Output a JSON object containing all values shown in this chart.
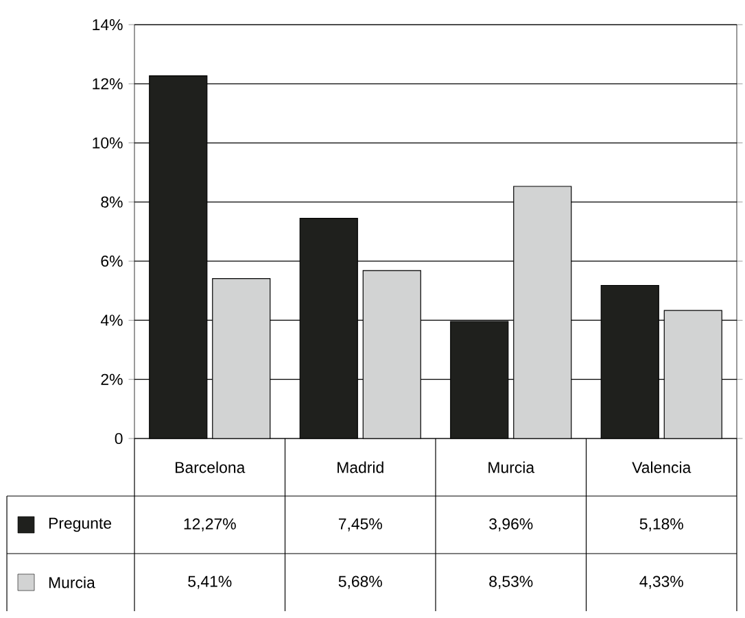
{
  "chart_data": {
    "type": "bar",
    "categories": [
      "Barcelona",
      "Madrid",
      "Murcia",
      "Valencia"
    ],
    "series": [
      {
        "name": "Pregunte",
        "color": "#1f201d",
        "values": [
          12.27,
          7.45,
          3.96,
          5.18
        ],
        "value_labels": [
          "12,27%",
          "7,45%",
          "3,96%",
          "5,18%"
        ]
      },
      {
        "name": "Murcia",
        "color": "#d2d3d3",
        "values": [
          5.41,
          5.68,
          8.53,
          4.33
        ],
        "value_labels": [
          "5,41%",
          "5,68%",
          "8,53%",
          "4,33%"
        ]
      }
    ],
    "ylim": [
      0,
      14
    ],
    "yticks": [
      {
        "value": 0,
        "label": "0"
      },
      {
        "value": 2,
        "label": "2%"
      },
      {
        "value": 4,
        "label": "4%"
      },
      {
        "value": 6,
        "label": "6%"
      },
      {
        "value": 8,
        "label": "8%"
      },
      {
        "value": 10,
        "label": "10%"
      },
      {
        "value": 12,
        "label": "12%"
      },
      {
        "value": 14,
        "label": "14%"
      }
    ],
    "grid": "y",
    "legend": "bottom left"
  }
}
